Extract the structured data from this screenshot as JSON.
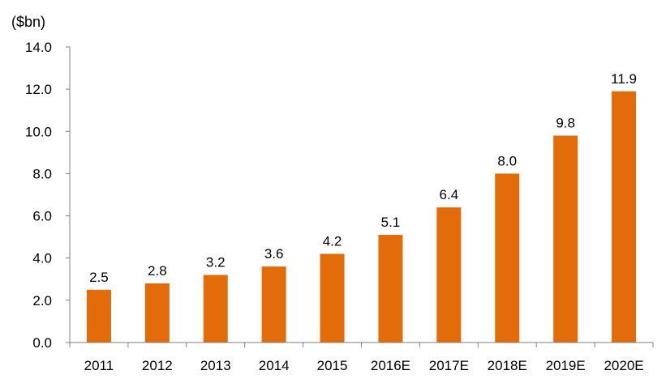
{
  "chart_data": {
    "type": "bar",
    "title": "",
    "xlabel": "",
    "ylabel": "",
    "unit_label": "($bn)",
    "categories": [
      "2011",
      "2012",
      "2013",
      "2014",
      "2015",
      "2016E",
      "2017E",
      "2018E",
      "2019E",
      "2020E"
    ],
    "values": [
      2.5,
      2.8,
      3.2,
      3.6,
      4.2,
      5.1,
      6.4,
      8.0,
      9.8,
      11.9
    ],
    "data_labels": [
      "2.5",
      "2.8",
      "3.2",
      "3.6",
      "4.2",
      "5.1",
      "6.4",
      "8.0",
      "9.8",
      "11.9"
    ],
    "ylim": [
      0,
      14
    ],
    "yticks": [
      0,
      2,
      4,
      6,
      8,
      10,
      12,
      14
    ],
    "ytick_labels": [
      "0.0",
      "2.0",
      "4.0",
      "6.0",
      "8.0",
      "10.0",
      "12.0",
      "14.0"
    ],
    "grid": false,
    "legend": "none",
    "bar_color": "#E36C0A",
    "axis_color": "#7F7F7F"
  }
}
